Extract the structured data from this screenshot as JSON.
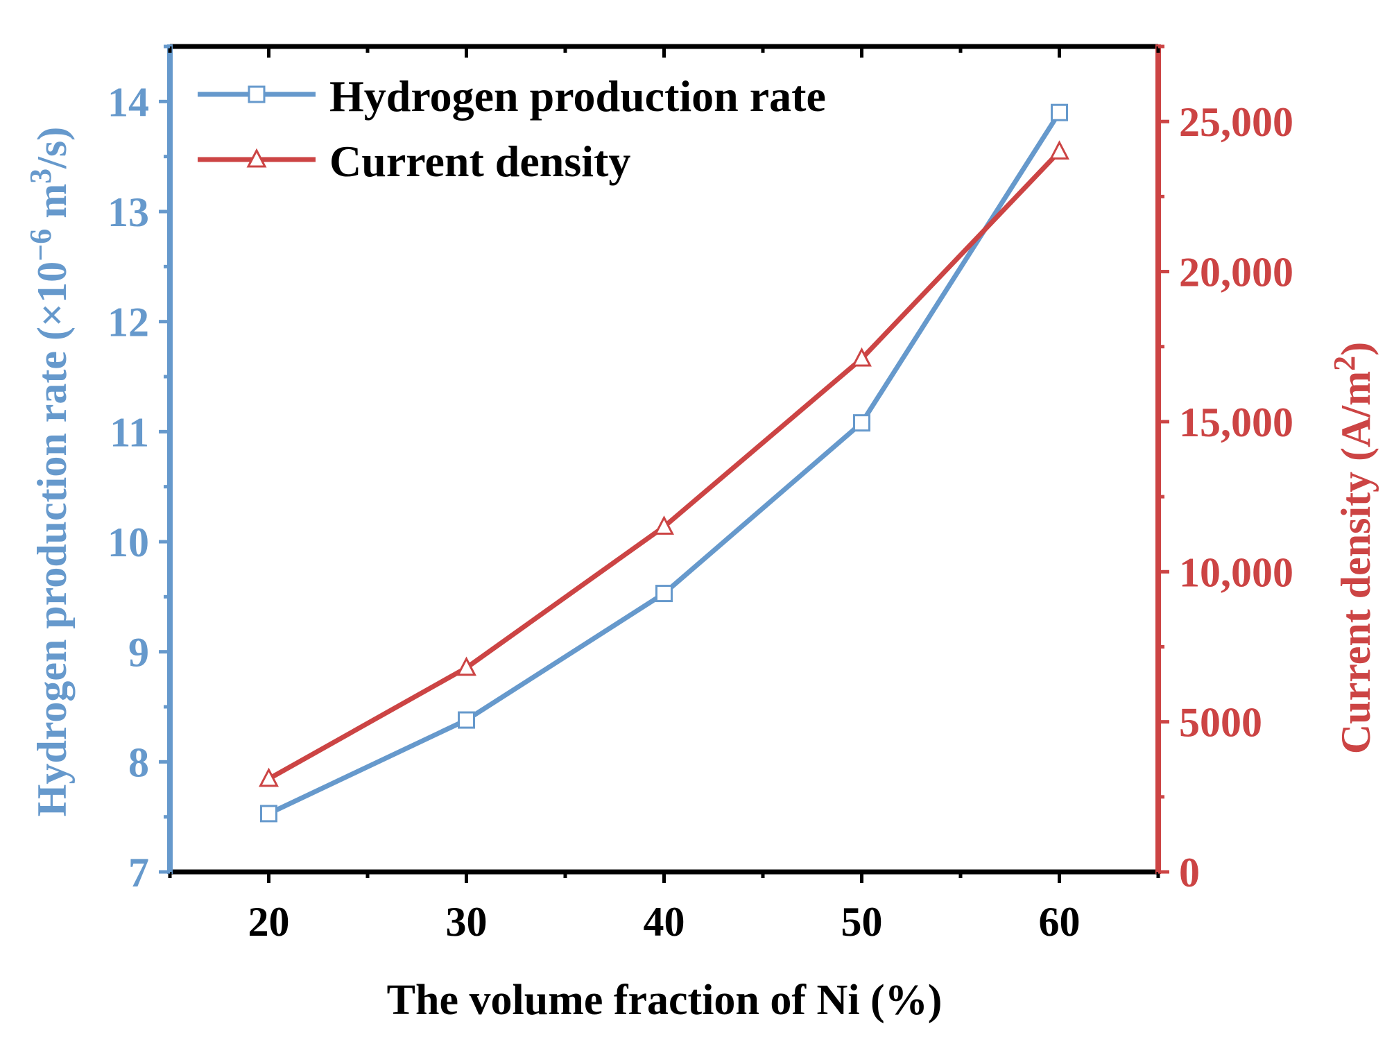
{
  "chart_data": {
    "type": "line",
    "x": [
      20,
      30,
      40,
      50,
      60
    ],
    "xlabel": "The volume fraction of Ni (%)",
    "xlim": [
      15,
      65
    ],
    "x_ticks": [
      "20",
      "30",
      "40",
      "50",
      "60"
    ],
    "y_left": {
      "label_prefix": "Hydrogen production rate (×10",
      "label_exp1": "−6",
      "label_mid": " m",
      "label_exp2": "3",
      "label_suffix": "/s)",
      "ylim": [
        7,
        14.5
      ],
      "ticks": [
        "7",
        "8",
        "9",
        "10",
        "11",
        "12",
        "13",
        "14"
      ],
      "color": "#6699cc"
    },
    "y_right": {
      "label_prefix": "Current density (A/m",
      "label_exp": "2",
      "label_suffix": ")",
      "ylim": [
        0,
        27500
      ],
      "ticks": [
        "0",
        "5000",
        "10,000",
        "15,000",
        "20,000",
        "25,000"
      ],
      "color": "#cc4444"
    },
    "series": [
      {
        "name": "Hydrogen production rate",
        "axis": "left",
        "marker": "square",
        "color": "#6699cc",
        "values": [
          7.53,
          8.38,
          9.53,
          11.08,
          13.9
        ]
      },
      {
        "name": "Current density",
        "axis": "right",
        "marker": "triangle",
        "color": "#cc4444",
        "values": [
          3100,
          6800,
          11500,
          17100,
          24000
        ]
      }
    ],
    "legend_position": "top-left",
    "frame_color": "#000000"
  }
}
